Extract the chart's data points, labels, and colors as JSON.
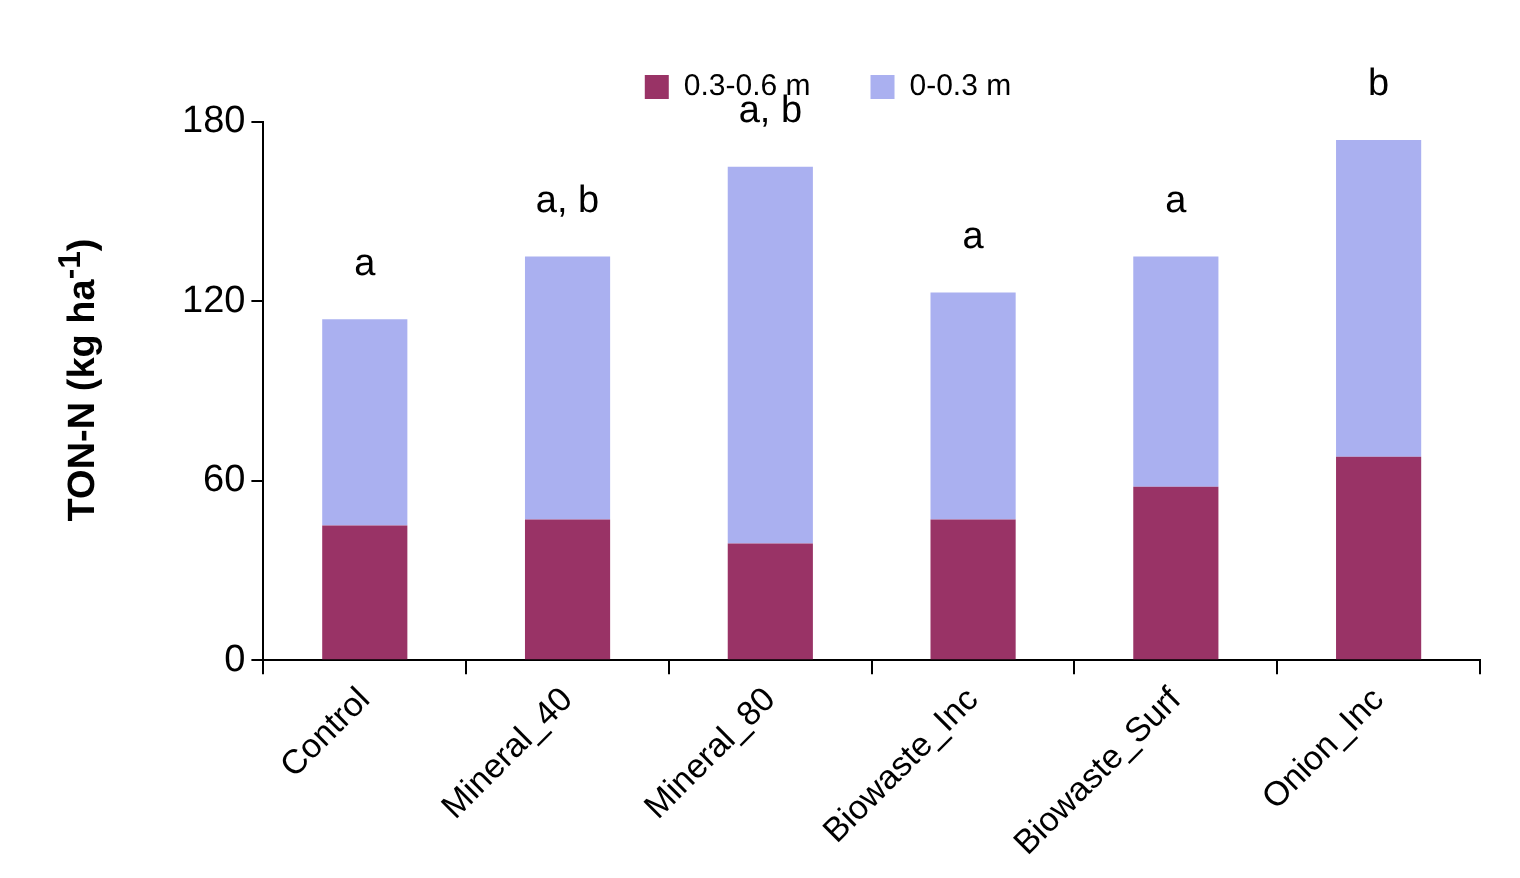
{
  "chart_data": {
    "type": "bar",
    "stacked": true,
    "ylabel": "TON-N (kg ha$^{-1}$)",
    "categories": [
      "Control",
      "Mineral_40",
      "Mineral_80",
      "Biowaste_Inc",
      "Biowaste_Surf",
      "Onion_Inc"
    ],
    "series": [
      {
        "name": "0.3-0.6 m",
        "color": "#993366",
        "values": [
          45,
          47,
          39,
          47,
          58,
          68
        ]
      },
      {
        "name": "0-0.3 m",
        "color": "#aab0f0",
        "values": [
          69,
          88,
          126,
          76,
          77,
          106
        ]
      }
    ],
    "ylim": [
      0,
      180
    ],
    "yticks": [
      0,
      60,
      120,
      180
    ],
    "grid": false,
    "legend": "top",
    "annotations": [
      "a",
      "a, b",
      "a, b",
      "a",
      "a",
      "b"
    ]
  }
}
